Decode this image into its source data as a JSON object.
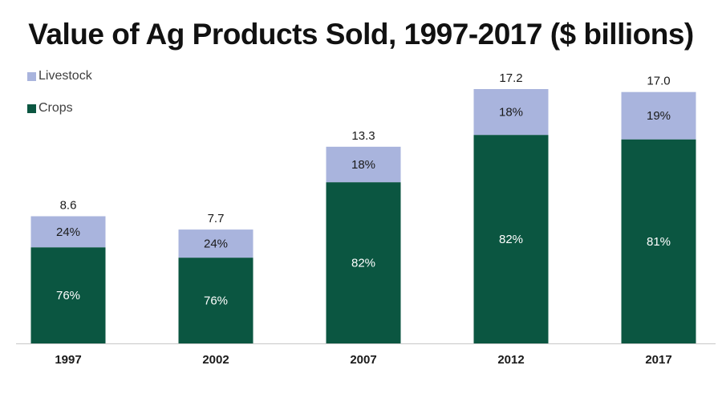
{
  "chart_data": {
    "type": "bar",
    "stacked": true,
    "title": "Value of Ag Products Sold, 1997-2017 ($ billions)",
    "xlabel": "",
    "ylabel": "",
    "categories": [
      "1997",
      "2002",
      "2007",
      "2012",
      "2017"
    ],
    "totals": [
      8.6,
      7.7,
      13.3,
      17.2,
      17.0
    ],
    "total_labels": [
      "8.6",
      "7.7",
      "13.3",
      "17.2",
      "17.0"
    ],
    "series": [
      {
        "name": "Crops",
        "color": "#0b5641",
        "values": [
          6.5,
          5.8,
          10.9,
          14.1,
          13.8
        ],
        "labels": [
          "76%",
          "76%",
          "82%",
          "82%",
          "81%"
        ]
      },
      {
        "name": "Livestock",
        "color": "#a9b4dd",
        "values": [
          2.1,
          1.9,
          2.4,
          3.1,
          3.2
        ],
        "labels": [
          "24%",
          "24%",
          "18%",
          "18%",
          "19%"
        ]
      }
    ],
    "ylim": [
      0,
      17.2
    ],
    "grid": false,
    "legend_position": "top-left"
  }
}
